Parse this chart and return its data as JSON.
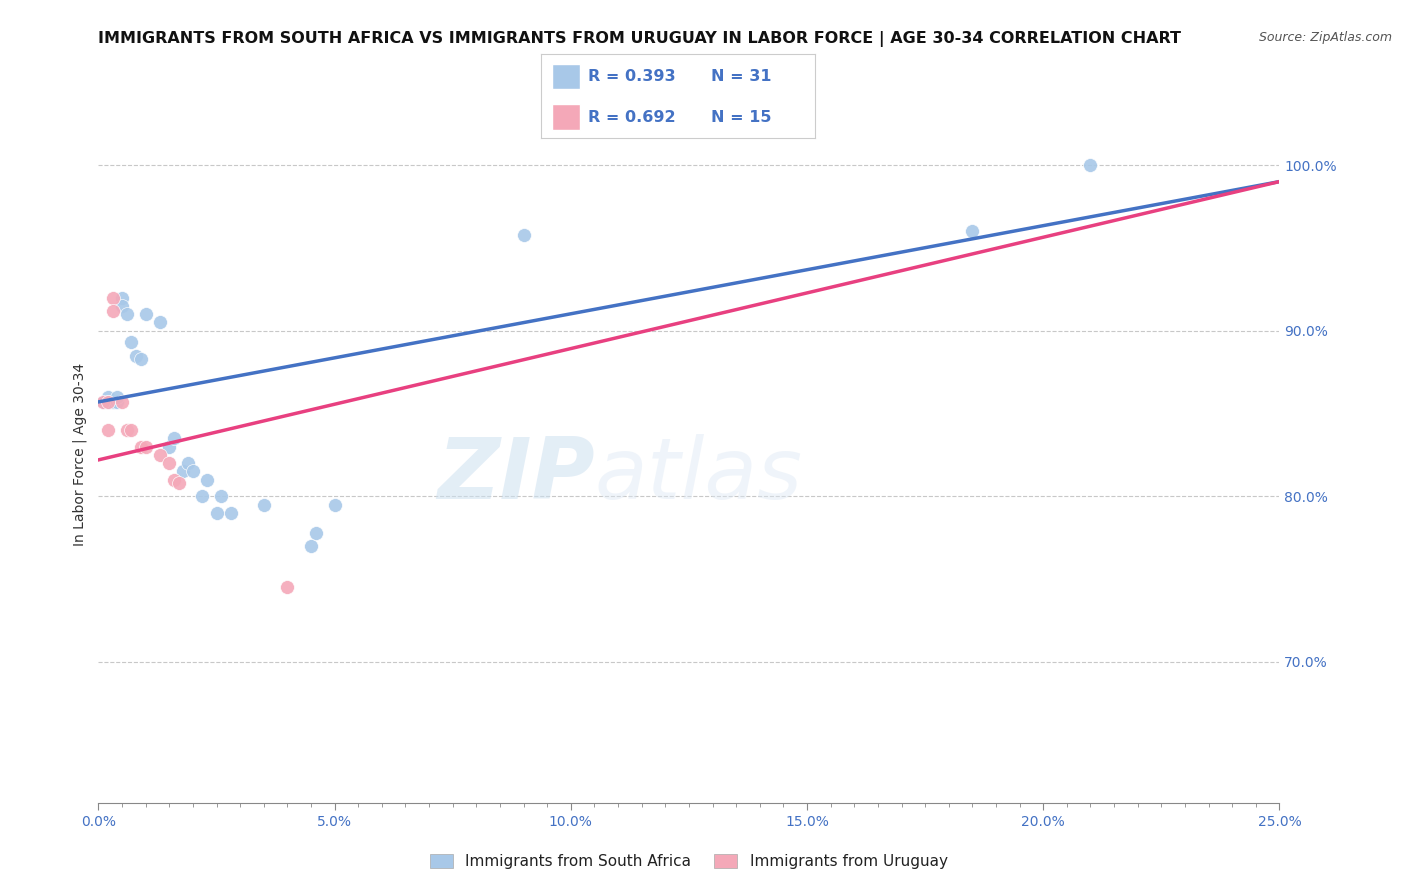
{
  "title": "IMMIGRANTS FROM SOUTH AFRICA VS IMMIGRANTS FROM URUGUAY IN LABOR FORCE | AGE 30-34 CORRELATION CHART",
  "source": "Source: ZipAtlas.com",
  "ylabel": "In Labor Force | Age 30-34",
  "xmin": 0.0,
  "xmax": 0.25,
  "ymin": 0.615,
  "ymax": 1.035,
  "xtick_labels": [
    "0.0%",
    "",
    "",
    "",
    "",
    "",
    "",
    "",
    "",
    "",
    "5.0%",
    "",
    "",
    "",
    "",
    "",
    "",
    "",
    "",
    "",
    "10.0%",
    "",
    "",
    "",
    "",
    "",
    "",
    "",
    "",
    "",
    "15.0%",
    "",
    "",
    "",
    "",
    "",
    "",
    "",
    "",
    "",
    "20.0%",
    "",
    "",
    "",
    "",
    "",
    "",
    "",
    "",
    "",
    "25.0%"
  ],
  "xtick_vals": [
    0.0,
    0.005,
    0.01,
    0.015,
    0.02,
    0.025,
    0.03,
    0.035,
    0.04,
    0.045,
    0.05,
    0.055,
    0.06,
    0.065,
    0.07,
    0.075,
    0.08,
    0.085,
    0.09,
    0.095,
    0.1,
    0.105,
    0.11,
    0.115,
    0.12,
    0.125,
    0.13,
    0.135,
    0.14,
    0.145,
    0.15,
    0.155,
    0.16,
    0.165,
    0.17,
    0.175,
    0.18,
    0.185,
    0.19,
    0.195,
    0.2,
    0.205,
    0.21,
    0.215,
    0.22,
    0.225,
    0.23,
    0.235,
    0.24,
    0.245,
    0.25
  ],
  "ytick_labels": [
    "70.0%",
    "80.0%",
    "90.0%",
    "100.0%"
  ],
  "ytick_vals": [
    0.7,
    0.8,
    0.9,
    1.0
  ],
  "south_africa_points": [
    [
      0.001,
      0.857
    ],
    [
      0.002,
      0.86
    ],
    [
      0.002,
      0.857
    ],
    [
      0.003,
      0.857
    ],
    [
      0.004,
      0.857
    ],
    [
      0.004,
      0.86
    ],
    [
      0.005,
      0.92
    ],
    [
      0.005,
      0.915
    ],
    [
      0.006,
      0.91
    ],
    [
      0.007,
      0.893
    ],
    [
      0.008,
      0.885
    ],
    [
      0.009,
      0.883
    ],
    [
      0.01,
      0.91
    ],
    [
      0.013,
      0.905
    ],
    [
      0.015,
      0.83
    ],
    [
      0.016,
      0.835
    ],
    [
      0.018,
      0.815
    ],
    [
      0.019,
      0.82
    ],
    [
      0.02,
      0.815
    ],
    [
      0.022,
      0.8
    ],
    [
      0.023,
      0.81
    ],
    [
      0.025,
      0.79
    ],
    [
      0.026,
      0.8
    ],
    [
      0.028,
      0.79
    ],
    [
      0.035,
      0.795
    ],
    [
      0.045,
      0.77
    ],
    [
      0.046,
      0.778
    ],
    [
      0.05,
      0.795
    ],
    [
      0.09,
      0.958
    ],
    [
      0.185,
      0.96
    ],
    [
      0.21,
      1.0
    ]
  ],
  "uruguay_points": [
    [
      0.001,
      0.857
    ],
    [
      0.002,
      0.857
    ],
    [
      0.002,
      0.84
    ],
    [
      0.003,
      0.92
    ],
    [
      0.003,
      0.912
    ],
    [
      0.005,
      0.857
    ],
    [
      0.006,
      0.84
    ],
    [
      0.007,
      0.84
    ],
    [
      0.009,
      0.83
    ],
    [
      0.01,
      0.83
    ],
    [
      0.013,
      0.825
    ],
    [
      0.015,
      0.82
    ],
    [
      0.016,
      0.81
    ],
    [
      0.017,
      0.808
    ],
    [
      0.04,
      0.745
    ]
  ],
  "sa_line_x": [
    0.0,
    0.25
  ],
  "sa_line_y": [
    0.857,
    0.99
  ],
  "uru_line_x": [
    0.0,
    0.25
  ],
  "uru_line_y": [
    0.822,
    0.99
  ],
  "blue_line_color": "#4472c4",
  "pink_line_color": "#e84080",
  "dot_blue": "#a8c8e8",
  "dot_pink": "#f4a8b8",
  "watermark_zip": "ZIP",
  "watermark_atlas": "atlas",
  "background_color": "#ffffff",
  "grid_color": "#c8c8c8",
  "title_fontsize": 11.5,
  "axis_fontsize": 10,
  "tick_fontsize": 10,
  "dot_size": 100,
  "legend_R_blue": "0.393",
  "legend_N_blue": "31",
  "legend_R_pink": "0.692",
  "legend_N_pink": "15",
  "label_south_africa": "Immigrants from South Africa",
  "label_uruguay": "Immigrants from Uruguay"
}
